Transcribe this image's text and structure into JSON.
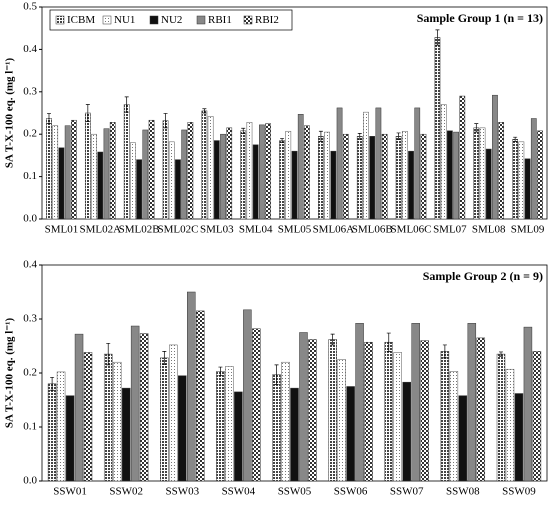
{
  "chart_data": [
    {
      "type": "bar",
      "annotation": "Sample Group 1 (n = 13)",
      "y_label": "SA T-X-100 eq. (mg l⁻¹)",
      "categories": [
        "SML01",
        "SML02A",
        "SML02B",
        "SML02C",
        "SML03",
        "SML04",
        "SML05",
        "SML06A",
        "SML06B",
        "SML06C",
        "SML07",
        "SML08",
        "SML09"
      ],
      "series": [
        {
          "name": "ICBM",
          "color": "#9a9a9a",
          "values": [
            0.237,
            0.25,
            0.27,
            0.232,
            0.255,
            0.208,
            0.185,
            0.195,
            0.195,
            0.195,
            0.428,
            0.215,
            0.188
          ],
          "errors": [
            0.012,
            0.02,
            0.018,
            0.017,
            0.005,
            0.006,
            0.005,
            0.012,
            0.007,
            0.008,
            0.018,
            0.01,
            0.005
          ]
        },
        {
          "name": "NU1",
          "color": "#f4f4f4",
          "values": [
            0.22,
            0.2,
            0.18,
            0.182,
            0.242,
            0.228,
            0.207,
            0.205,
            0.252,
            0.207,
            0.27,
            0.215,
            0.182
          ]
        },
        {
          "name": "NU2",
          "color": "#111111",
          "values": [
            0.168,
            0.158,
            0.14,
            0.14,
            0.185,
            0.175,
            0.16,
            0.16,
            0.195,
            0.16,
            0.208,
            0.165,
            0.142
          ]
        },
        {
          "name": "RBI1",
          "color": "#8a8a8a",
          "values": [
            0.22,
            0.213,
            0.21,
            0.21,
            0.2,
            0.222,
            0.247,
            0.262,
            0.262,
            0.262,
            0.205,
            0.292,
            0.237
          ]
        },
        {
          "name": "RBI2",
          "color": "#bdbdbd",
          "values": [
            0.233,
            0.228,
            0.233,
            0.228,
            0.215,
            0.225,
            0.22,
            0.2,
            0.2,
            0.2,
            0.29,
            0.228,
            0.208
          ]
        }
      ],
      "ylim": [
        0,
        0.5
      ],
      "yticks": [
        {
          "value": 0,
          "label": "0.0"
        },
        0.1,
        0.2,
        0.3,
        0.4,
        0.5
      ],
      "legend": "upper left"
    },
    {
      "type": "bar",
      "annotation": "Sample Group 2 (n = 9)",
      "y_label": "SA T-X-100 eq. (mg l⁻¹)",
      "categories": [
        "SSW01",
        "SSW02",
        "SSW03",
        "SSW04",
        "SSW05",
        "SSW06",
        "SSW07",
        "SSW08",
        "SSW09"
      ],
      "series": [
        {
          "color": "#9a9a9a",
          "values": [
            0.18,
            0.235,
            0.228,
            0.203,
            0.197,
            0.262,
            0.257,
            0.24,
            0.235
          ],
          "errors": [
            0.012,
            0.02,
            0.012,
            0.008,
            0.018,
            0.01,
            0.017,
            0.012,
            0.004
          ]
        },
        {
          "color": "#f4f4f4",
          "values": [
            0.202,
            0.22,
            0.252,
            0.212,
            0.22,
            0.225,
            0.238,
            0.203,
            0.207
          ]
        },
        {
          "color": "#111111",
          "values": [
            0.158,
            0.172,
            0.195,
            0.165,
            0.172,
            0.175,
            0.183,
            0.158,
            0.162
          ]
        },
        {
          "color": "#8a8a8a",
          "values": [
            0.272,
            0.287,
            0.35,
            0.317,
            0.275,
            0.292,
            0.292,
            0.292,
            0.285
          ]
        },
        {
          "color": "#bdbdbd",
          "values": [
            0.238,
            0.273,
            0.315,
            0.282,
            0.262,
            0.257,
            0.26,
            0.265,
            0.24
          ]
        }
      ],
      "ylim": [
        0,
        0.4
      ],
      "yticks": [
        {
          "value": 0,
          "label": "0.0"
        },
        0.1,
        0.2,
        0.3,
        0.4
      ]
    }
  ]
}
